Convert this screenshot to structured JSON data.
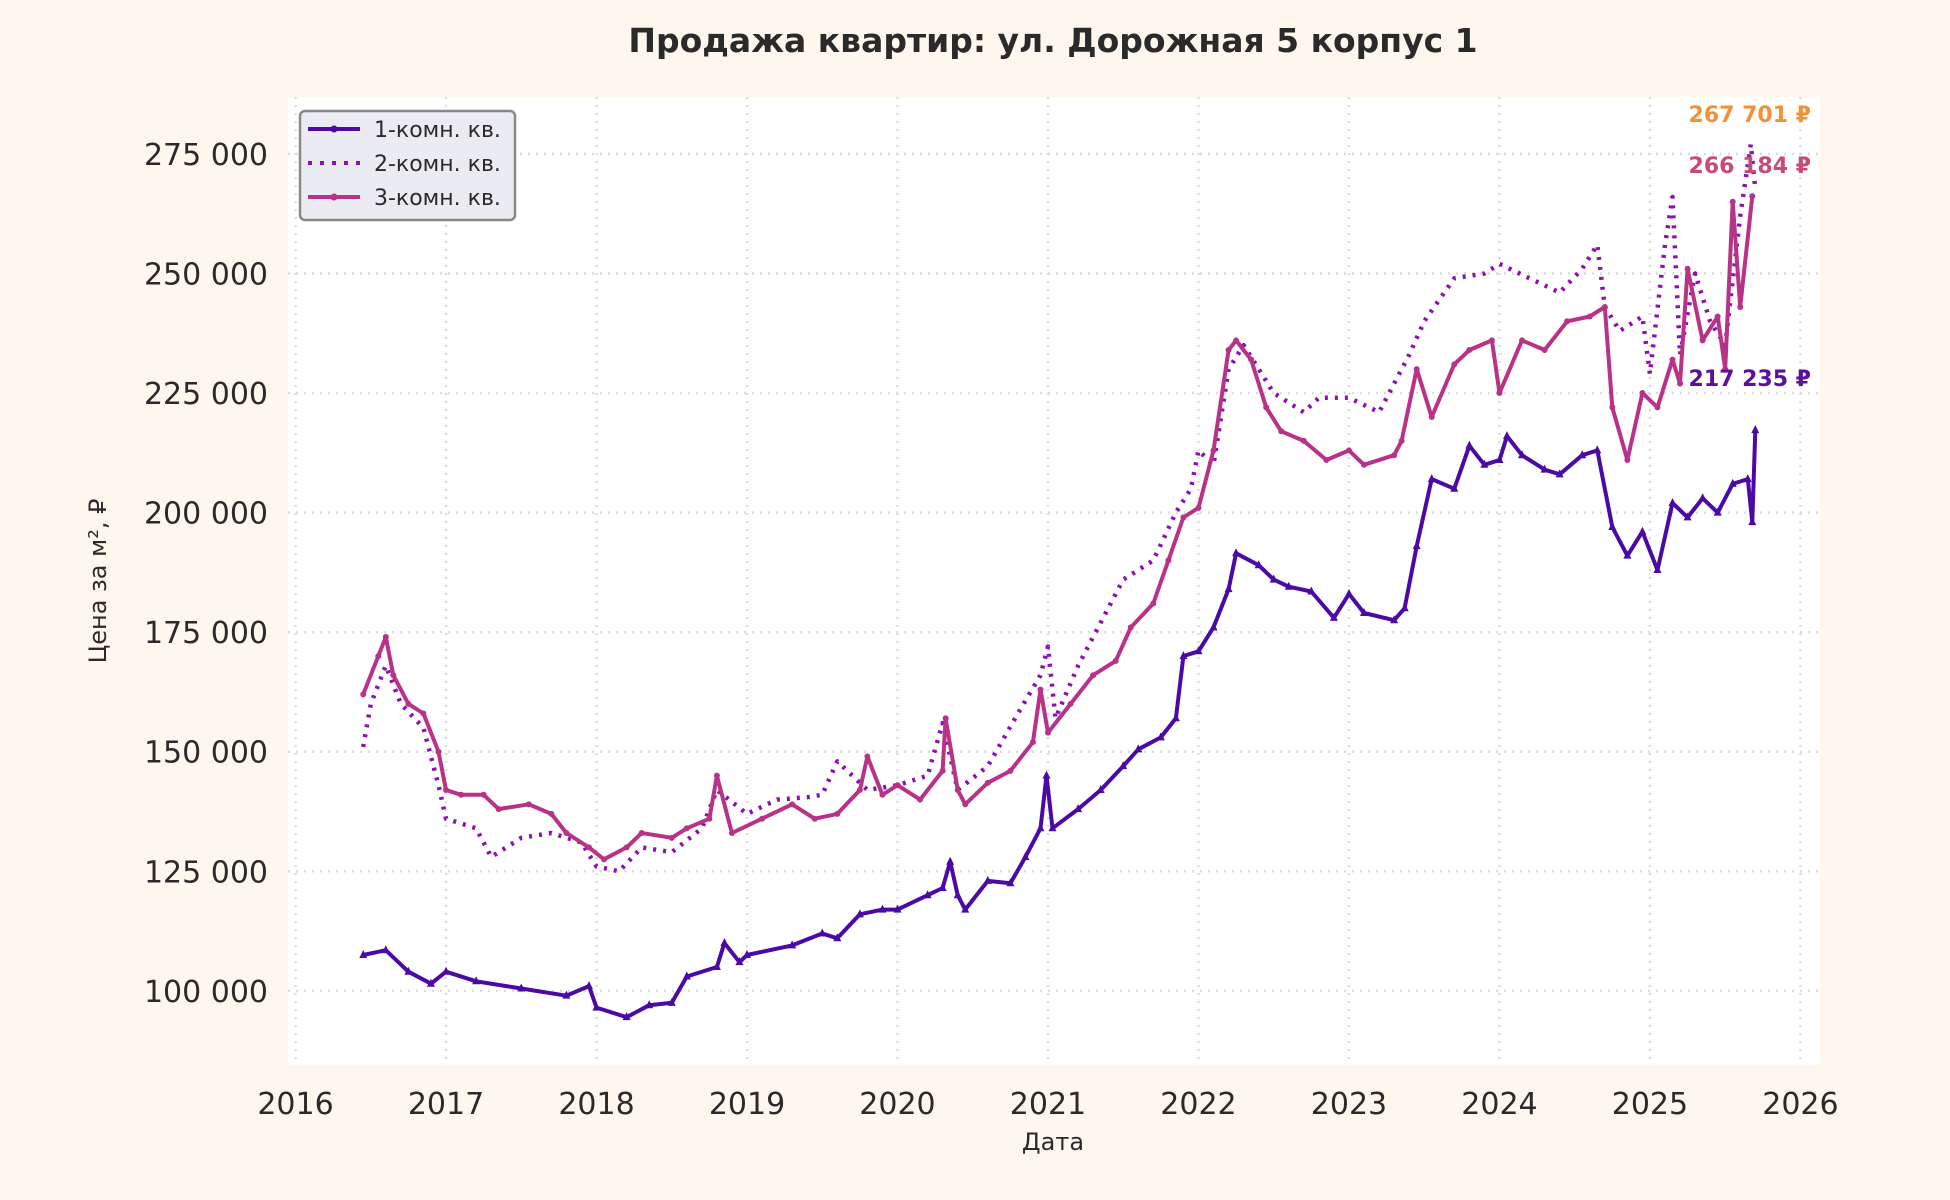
{
  "chart_data": {
    "type": "line",
    "title": "Продажа квартир: ул. Дорожная 5 корпус 1",
    "xlabel": "Дата",
    "ylabel": "Цена за м², ₽",
    "xlim": [
      2015.95,
      2026.13
    ],
    "ylim": [
      84500,
      286900
    ],
    "x_ticks": [
      2016,
      2017,
      2018,
      2019,
      2020,
      2021,
      2022,
      2023,
      2024,
      2025,
      2026
    ],
    "y_ticks": [
      100000,
      125000,
      150000,
      175000,
      200000,
      225000,
      250000,
      275000
    ],
    "y_tick_labels": [
      "100 000",
      "125 000",
      "150 000",
      "175 000",
      "200 000",
      "225 000",
      "250 000",
      "275 000"
    ],
    "grid": true,
    "legend_placement": "top-left",
    "series": [
      {
        "name": "1-комн. кв.",
        "color": "#4b0aa6",
        "style": "solid-triangle",
        "points": [
          [
            2016.45,
            107500
          ],
          [
            2016.6,
            108500
          ],
          [
            2016.75,
            104000
          ],
          [
            2016.9,
            101500
          ],
          [
            2017.0,
            104000
          ],
          [
            2017.2,
            102000
          ],
          [
            2017.5,
            100500
          ],
          [
            2017.8,
            99000
          ],
          [
            2017.95,
            101000
          ],
          [
            2018.0,
            96500
          ],
          [
            2018.2,
            94500
          ],
          [
            2018.35,
            97000
          ],
          [
            2018.5,
            97500
          ],
          [
            2018.6,
            103000
          ],
          [
            2018.8,
            105000
          ],
          [
            2018.85,
            110000
          ],
          [
            2018.95,
            106000
          ],
          [
            2019.0,
            107500
          ],
          [
            2019.3,
            109500
          ],
          [
            2019.5,
            112000
          ],
          [
            2019.6,
            111000
          ],
          [
            2019.75,
            116000
          ],
          [
            2019.9,
            117000
          ],
          [
            2020.0,
            117000
          ],
          [
            2020.2,
            120000
          ],
          [
            2020.3,
            121500
          ],
          [
            2020.35,
            127000
          ],
          [
            2020.4,
            120000
          ],
          [
            2020.45,
            117000
          ],
          [
            2020.6,
            123000
          ],
          [
            2020.75,
            122500
          ],
          [
            2020.85,
            128000
          ],
          [
            2020.95,
            134000
          ],
          [
            2020.99,
            145000
          ],
          [
            2021.03,
            134000
          ],
          [
            2021.2,
            138000
          ],
          [
            2021.35,
            142000
          ],
          [
            2021.5,
            147000
          ],
          [
            2021.6,
            150500
          ],
          [
            2021.75,
            153000
          ],
          [
            2021.85,
            157000
          ],
          [
            2021.9,
            170000
          ],
          [
            2022.0,
            171000
          ],
          [
            2022.1,
            176000
          ],
          [
            2022.2,
            184000
          ],
          [
            2022.25,
            191500
          ],
          [
            2022.4,
            189000
          ],
          [
            2022.5,
            186000
          ],
          [
            2022.6,
            184500
          ],
          [
            2022.75,
            183500
          ],
          [
            2022.9,
            178000
          ],
          [
            2023.0,
            183000
          ],
          [
            2023.1,
            179000
          ],
          [
            2023.3,
            177500
          ],
          [
            2023.37,
            180000
          ],
          [
            2023.45,
            193000
          ],
          [
            2023.55,
            207000
          ],
          [
            2023.7,
            205000
          ],
          [
            2023.8,
            214000
          ],
          [
            2023.9,
            210000
          ],
          [
            2024.0,
            211000
          ],
          [
            2024.05,
            216000
          ],
          [
            2024.15,
            212000
          ],
          [
            2024.3,
            209000
          ],
          [
            2024.4,
            208000
          ],
          [
            2024.55,
            212000
          ],
          [
            2024.65,
            213000
          ],
          [
            2024.75,
            197000
          ],
          [
            2024.85,
            191000
          ],
          [
            2024.95,
            196000
          ],
          [
            2025.05,
            188000
          ],
          [
            2025.15,
            202000
          ],
          [
            2025.25,
            199000
          ],
          [
            2025.35,
            203000
          ],
          [
            2025.45,
            200000
          ],
          [
            2025.55,
            206000
          ],
          [
            2025.65,
            207000
          ],
          [
            2025.68,
            198000
          ],
          [
            2025.7,
            217235
          ]
        ]
      },
      {
        "name": "2-комн. кв.",
        "color": "#8a12b0",
        "style": "dotted",
        "points": [
          [
            2016.45,
            151000
          ],
          [
            2016.5,
            160000
          ],
          [
            2016.6,
            168000
          ],
          [
            2016.7,
            160000
          ],
          [
            2016.85,
            155000
          ],
          [
            2016.95,
            143000
          ],
          [
            2017.0,
            136000
          ],
          [
            2017.2,
            134000
          ],
          [
            2017.3,
            128000
          ],
          [
            2017.5,
            132000
          ],
          [
            2017.7,
            133000
          ],
          [
            2017.9,
            131000
          ],
          [
            2018.0,
            126000
          ],
          [
            2018.15,
            125000
          ],
          [
            2018.3,
            130000
          ],
          [
            2018.5,
            129000
          ],
          [
            2018.7,
            134000
          ],
          [
            2018.8,
            142000
          ],
          [
            2019.0,
            137000
          ],
          [
            2019.2,
            140000
          ],
          [
            2019.4,
            140500
          ],
          [
            2019.5,
            141000
          ],
          [
            2019.6,
            148000
          ],
          [
            2019.8,
            142000
          ],
          [
            2020.0,
            143000
          ],
          [
            2020.2,
            145000
          ],
          [
            2020.3,
            156000
          ],
          [
            2020.4,
            142000
          ],
          [
            2020.6,
            147000
          ],
          [
            2020.8,
            158000
          ],
          [
            2020.95,
            166000
          ],
          [
            2021.0,
            172000
          ],
          [
            2021.05,
            157000
          ],
          [
            2021.2,
            168000
          ],
          [
            2021.4,
            180000
          ],
          [
            2021.5,
            186000
          ],
          [
            2021.7,
            190000
          ],
          [
            2021.85,
            200000
          ],
          [
            2021.95,
            205000
          ],
          [
            2022.0,
            213000
          ],
          [
            2022.1,
            210000
          ],
          [
            2022.2,
            230000
          ],
          [
            2022.3,
            235000
          ],
          [
            2022.4,
            230000
          ],
          [
            2022.5,
            225000
          ],
          [
            2022.7,
            221000
          ],
          [
            2022.8,
            224000
          ],
          [
            2023.0,
            224000
          ],
          [
            2023.2,
            221000
          ],
          [
            2023.4,
            233000
          ],
          [
            2023.5,
            240000
          ],
          [
            2023.7,
            249000
          ],
          [
            2023.9,
            250000
          ],
          [
            2024.0,
            252000
          ],
          [
            2024.2,
            249000
          ],
          [
            2024.4,
            246000
          ],
          [
            2024.55,
            251000
          ],
          [
            2024.65,
            256000
          ],
          [
            2024.7,
            243000
          ],
          [
            2024.8,
            238000
          ],
          [
            2024.95,
            241000
          ],
          [
            2025.0,
            229000
          ],
          [
            2025.1,
            256000
          ],
          [
            2025.15,
            266000
          ],
          [
            2025.2,
            233000
          ],
          [
            2025.3,
            250000
          ],
          [
            2025.4,
            240000
          ],
          [
            2025.5,
            235000
          ],
          [
            2025.6,
            262000
          ],
          [
            2025.67,
            277000
          ],
          [
            2025.7,
            267701
          ]
        ]
      },
      {
        "name": "3-комн. кв.",
        "color": "#b83288",
        "style": "solid-dot",
        "points": [
          [
            2016.45,
            162000
          ],
          [
            2016.55,
            170000
          ],
          [
            2016.6,
            174000
          ],
          [
            2016.65,
            166000
          ],
          [
            2016.75,
            160000
          ],
          [
            2016.85,
            158000
          ],
          [
            2016.95,
            150000
          ],
          [
            2017.0,
            142000
          ],
          [
            2017.1,
            141000
          ],
          [
            2017.25,
            141000
          ],
          [
            2017.35,
            138000
          ],
          [
            2017.55,
            139000
          ],
          [
            2017.7,
            137000
          ],
          [
            2017.8,
            133000
          ],
          [
            2017.95,
            130000
          ],
          [
            2018.05,
            127500
          ],
          [
            2018.2,
            130000
          ],
          [
            2018.3,
            133000
          ],
          [
            2018.5,
            132000
          ],
          [
            2018.6,
            134000
          ],
          [
            2018.75,
            136000
          ],
          [
            2018.8,
            145000
          ],
          [
            2018.9,
            133000
          ],
          [
            2019.1,
            136000
          ],
          [
            2019.3,
            139000
          ],
          [
            2019.45,
            136000
          ],
          [
            2019.6,
            137000
          ],
          [
            2019.75,
            142000
          ],
          [
            2019.8,
            149000
          ],
          [
            2019.9,
            141000
          ],
          [
            2020.0,
            143000
          ],
          [
            2020.15,
            140000
          ],
          [
            2020.3,
            146000
          ],
          [
            2020.32,
            157000
          ],
          [
            2020.4,
            142000
          ],
          [
            2020.45,
            139000
          ],
          [
            2020.6,
            143500
          ],
          [
            2020.75,
            146000
          ],
          [
            2020.9,
            152000
          ],
          [
            2020.95,
            163000
          ],
          [
            2021.0,
            154000
          ],
          [
            2021.15,
            160000
          ],
          [
            2021.3,
            166000
          ],
          [
            2021.45,
            169000
          ],
          [
            2021.55,
            176000
          ],
          [
            2021.7,
            181000
          ],
          [
            2021.8,
            190000
          ],
          [
            2021.9,
            199000
          ],
          [
            2022.0,
            201000
          ],
          [
            2022.1,
            213000
          ],
          [
            2022.2,
            234000
          ],
          [
            2022.25,
            236000
          ],
          [
            2022.35,
            232000
          ],
          [
            2022.45,
            222000
          ],
          [
            2022.55,
            217000
          ],
          [
            2022.7,
            215000
          ],
          [
            2022.85,
            211000
          ],
          [
            2023.0,
            213000
          ],
          [
            2023.1,
            210000
          ],
          [
            2023.3,
            212000
          ],
          [
            2023.35,
            215000
          ],
          [
            2023.45,
            230000
          ],
          [
            2023.55,
            220000
          ],
          [
            2023.7,
            231000
          ],
          [
            2023.8,
            234000
          ],
          [
            2023.95,
            236000
          ],
          [
            2024.0,
            225000
          ],
          [
            2024.15,
            236000
          ],
          [
            2024.3,
            234000
          ],
          [
            2024.45,
            240000
          ],
          [
            2024.6,
            241000
          ],
          [
            2024.7,
            243000
          ],
          [
            2024.75,
            222000
          ],
          [
            2024.85,
            211000
          ],
          [
            2024.95,
            225000
          ],
          [
            2025.05,
            222000
          ],
          [
            2025.15,
            232000
          ],
          [
            2025.2,
            227000
          ],
          [
            2025.25,
            251000
          ],
          [
            2025.35,
            236000
          ],
          [
            2025.45,
            241000
          ],
          [
            2025.5,
            230000
          ],
          [
            2025.55,
            265000
          ],
          [
            2025.6,
            243000
          ],
          [
            2025.68,
            266184
          ]
        ]
      }
    ],
    "annotations": [
      {
        "text": "267 701 ₽",
        "value": 267701,
        "color": "#f0923c"
      },
      {
        "text": "266 184 ₽",
        "value": 266184,
        "color": "#c84a78"
      },
      {
        "text": "217 235 ₽",
        "value": 217235,
        "color": "#5c0f9e"
      }
    ]
  }
}
